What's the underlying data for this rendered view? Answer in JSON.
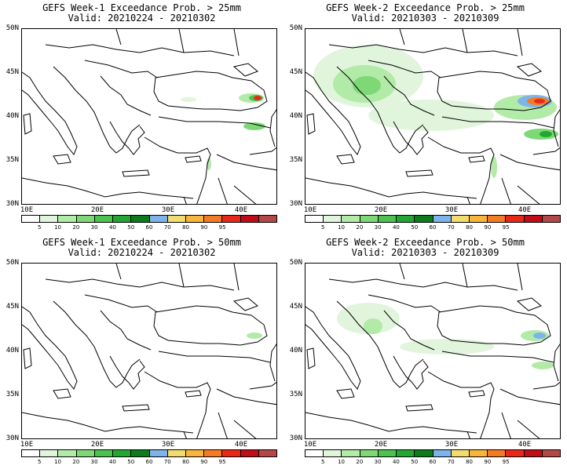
{
  "colorbar": {
    "colors": [
      "#ffffff",
      "#e0f5dc",
      "#b2eaa8",
      "#7ed876",
      "#4cc351",
      "#22a733",
      "#0c7c1d",
      "#7fb4ea",
      "#f3dc6f",
      "#f7b53a",
      "#f47b25",
      "#e8291a",
      "#bf0e17",
      "#b44848"
    ],
    "labels": [
      "5",
      "10",
      "20",
      "30",
      "40",
      "50",
      "60",
      "70",
      "80",
      "90",
      "95"
    ]
  },
  "axes": {
    "lat_labels": [
      "50N",
      "45N",
      "40N",
      "35N",
      "30N"
    ],
    "lon_labels": [
      "10E",
      "20E",
      "30E",
      "40E"
    ]
  },
  "panels": [
    {
      "title": "GEFS Week-1 Exceedance Prob. > 25mm",
      "valid": "Valid: 20210224 - 20210302",
      "intensity": "week1-25"
    },
    {
      "title": "GEFS Week-2 Exceedance Prob. > 25mm",
      "valid": "Valid: 20210303 - 20210309",
      "intensity": "week2-25"
    },
    {
      "title": "GEFS Week-1 Exceedance Prob. > 50mm",
      "valid": "Valid: 20210224 - 20210302",
      "intensity": "week1-50"
    },
    {
      "title": "GEFS Week-2 Exceedance Prob. > 50mm",
      "valid": "Valid: 20210303 - 20210309",
      "intensity": "week2-50"
    }
  ]
}
